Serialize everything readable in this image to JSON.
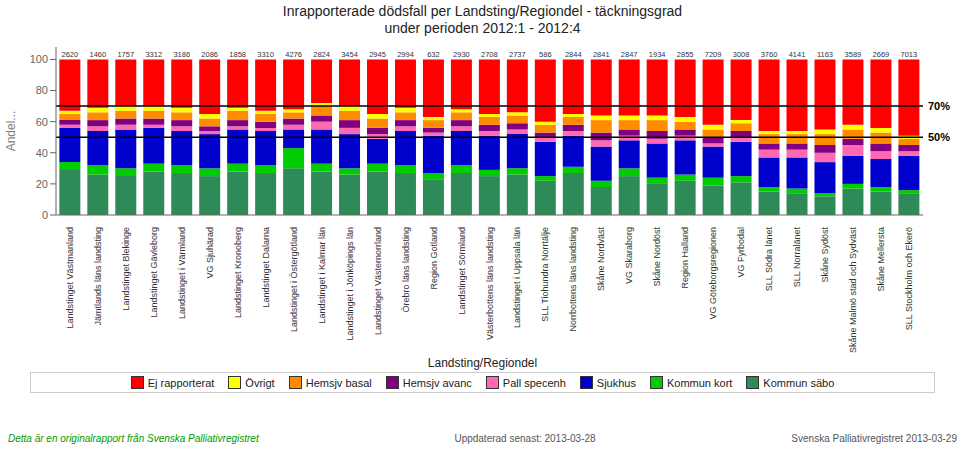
{
  "chart_data": {
    "type": "bar",
    "stacked": true,
    "title": "Inrapporterade dödsfall per Landsting/Regiondel - täckningsgrad\nunder perioden 2012:1 - 2012:4",
    "xlabel": "Landsting/Regiondel",
    "ylabel": "Andel...",
    "categories": [
      "Landstinget Västmanland",
      "Jämtlands läns landsting",
      "Landstinget Blekinge",
      "Landstinget Gävleborg",
      "Landstinget i Värmland",
      "VG Sjuhärad",
      "Landstinget Kronoberg",
      "Landstinget Dalarna",
      "Landstinget i Östergötland",
      "Landstinget i Kalmar län",
      "Landstinget i Jönköpings län",
      "Landstinget Västernorrland",
      "Örebro läns landsting",
      "Region Gotland",
      "Landstinget Sörmland",
      "Västerbottens läns landsting",
      "Landstinget i Uppsala län",
      "SLL Tiohundra Norrtälje",
      "Norrbottens läns landsting",
      "Skåne Nordväst",
      "VG Skaraborg",
      "Skåne Nordöst",
      "Region Halland",
      "VG Göteborgsregionen",
      "VG Fyrbodal",
      "SLL Södra länet",
      "SLL Norralänet",
      "Skåne Sydöst",
      "Skåne Malmö stad och Sydväst",
      "Skåne Mellersta",
      "SLL Stockholm och Ekerö"
    ],
    "series": [
      {
        "name": "Kommun säbo",
        "color": "#2E8B57",
        "values": [
          29,
          26,
          25,
          28,
          27,
          25,
          28,
          27,
          30,
          28,
          26,
          28,
          27,
          23,
          27,
          25,
          26,
          22,
          27,
          18,
          25,
          20,
          22,
          19,
          21,
          15,
          14,
          12,
          17,
          15,
          14
        ]
      },
      {
        "name": "Kommun kort",
        "color": "#00CC00",
        "values": [
          5,
          6,
          5,
          5,
          5,
          5,
          5,
          5,
          13,
          5,
          4,
          5,
          5,
          4,
          5,
          4,
          4,
          3,
          4,
          4,
          5,
          4,
          4,
          5,
          4,
          3,
          3,
          2,
          3,
          3,
          2
        ]
      },
      {
        "name": "Sjukhus",
        "color": "#0000CD",
        "values": [
          22,
          22,
          25,
          23,
          22,
          22,
          22,
          22,
          12,
          22,
          22,
          16,
          22,
          24,
          22,
          22,
          22,
          22,
          20,
          22,
          18,
          22,
          22,
          20,
          22,
          19,
          20,
          20,
          18,
          18,
          22
        ]
      },
      {
        "name": "Pall specenh",
        "color": "#FF69B4",
        "values": [
          2,
          3,
          3,
          2,
          3,
          2,
          2,
          2,
          3,
          5,
          4,
          3,
          3,
          2,
          3,
          3,
          3,
          3,
          3,
          4,
          3,
          3,
          3,
          2,
          3,
          5,
          5,
          6,
          7,
          5,
          3
        ]
      },
      {
        "name": "Hemsjv avanc",
        "color": "#800080",
        "values": [
          3,
          4,
          4,
          4,
          4,
          3,
          4,
          4,
          4,
          4,
          5,
          4,
          4,
          3,
          4,
          4,
          4,
          3,
          4,
          5,
          4,
          5,
          4,
          4,
          4,
          4,
          4,
          5,
          4,
          5,
          4
        ]
      },
      {
        "name": "Hemsjv basal",
        "color": "#FF8C00",
        "values": [
          4,
          5,
          5,
          5,
          5,
          5,
          6,
          5,
          4,
          6,
          6,
          6,
          5,
          5,
          5,
          5,
          5,
          5,
          5,
          8,
          6,
          7,
          5,
          5,
          5,
          6,
          6,
          7,
          6,
          7,
          4
        ]
      },
      {
        "name": "Övrigt",
        "color": "#FFFF00",
        "values": [
          2,
          3,
          3,
          3,
          3,
          3,
          2,
          2,
          2,
          2,
          3,
          3,
          3,
          2,
          2,
          2,
          2,
          2,
          2,
          3,
          3,
          3,
          3,
          3,
          2,
          2,
          2,
          3,
          3,
          3,
          2
        ]
      },
      {
        "name": "Ej rapporterat",
        "color": "#FF0000",
        "values": [
          33,
          31,
          30,
          30,
          31,
          35,
          31,
          33,
          32,
          28,
          30,
          35,
          31,
          37,
          32,
          35,
          34,
          40,
          35,
          36,
          36,
          36,
          37,
          42,
          39,
          46,
          46,
          45,
          42,
          44,
          49
        ]
      }
    ],
    "totals": [
      2620,
      1460,
      1757,
      3312,
      3186,
      2086,
      1858,
      3310,
      4276,
      2824,
      3454,
      2945,
      2994,
      632,
      2930,
      2708,
      2737,
      586,
      2844,
      2841,
      2847,
      1934,
      2855,
      7209,
      3008,
      3760,
      4141,
      1163,
      3589,
      2669,
      7013
    ],
    "hlines": [
      {
        "value": 70,
        "label": "70%"
      },
      {
        "value": 50,
        "label": "50%"
      }
    ],
    "ylim": [
      0,
      108
    ],
    "yticks": [
      0,
      20,
      40,
      60,
      80,
      100
    ],
    "grid": false,
    "legend": "bottom",
    "footer": [
      "Detta är en originalrapport från Svenska Palliativregistret",
      "Uppdaterad senast:  2013-03-28",
      "Svenska Palliativregistret 2013-03-29"
    ]
  }
}
